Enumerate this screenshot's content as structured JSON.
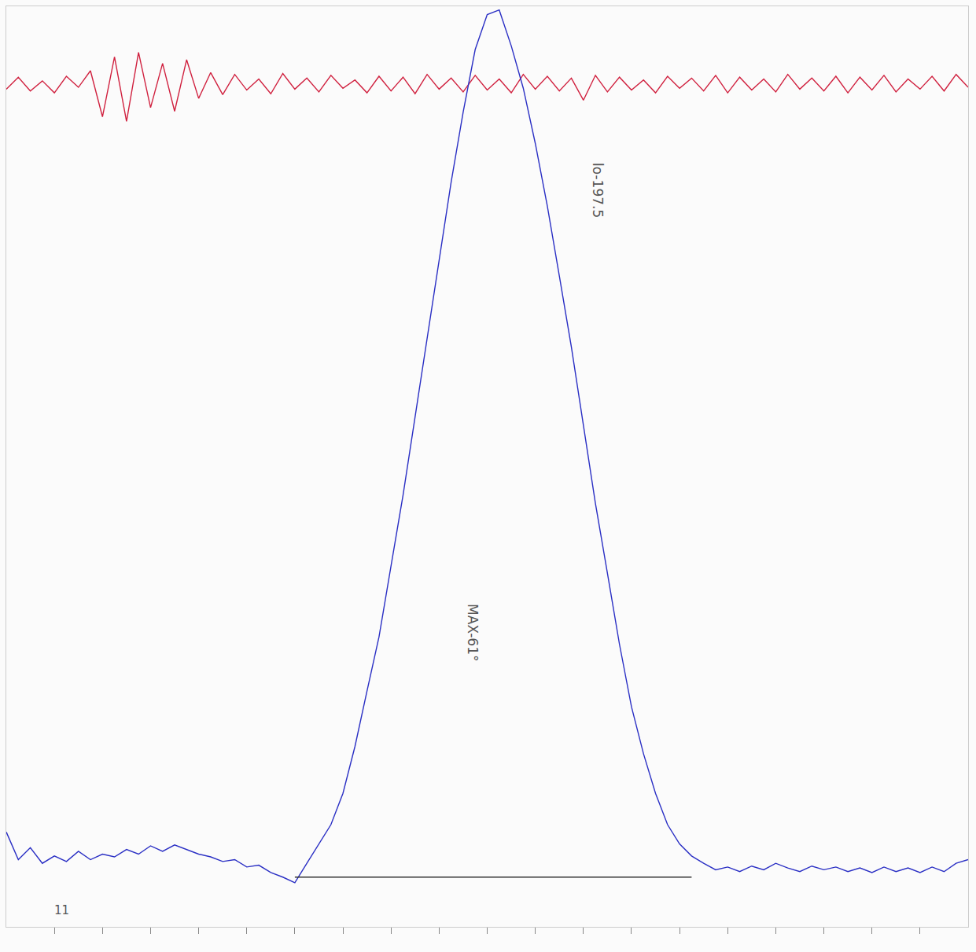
{
  "chart_data": {
    "type": "line",
    "x": [
      0,
      0.25,
      0.5,
      0.75,
      1,
      1.25,
      1.5,
      1.75,
      2,
      2.25,
      2.5,
      2.75,
      3,
      3.25,
      3.5,
      3.75,
      4,
      4.25,
      4.5,
      4.75,
      5,
      5.25,
      5.5,
      5.75,
      6,
      6.25,
      6.5,
      6.75,
      7,
      7.25,
      7.5,
      7.75,
      8,
      8.25,
      8.5,
      8.75,
      9,
      9.25,
      9.5,
      9.75,
      10,
      10.25,
      10.5,
      10.75,
      11,
      11.25,
      11.5,
      11.75,
      12,
      12.25,
      12.5,
      12.75,
      13,
      13.25,
      13.5,
      13.75,
      14,
      14.25,
      14.5,
      14.75,
      15,
      15.25,
      15.5,
      15.75,
      16,
      16.25,
      16.5,
      16.75,
      17,
      17.25,
      17.5,
      17.75,
      18,
      18.25,
      18.5,
      18.75,
      19,
      19.25,
      19.5,
      19.75,
      20
    ],
    "series": [
      {
        "color": "#d0213f",
        "values": [
          91.0,
          92.3,
          90.8,
          91.9,
          90.6,
          92.4,
          91.2,
          93.0,
          88.0,
          94.5,
          87.5,
          95.0,
          89.0,
          93.8,
          88.6,
          94.2,
          90.0,
          92.8,
          90.4,
          92.6,
          90.9,
          92.1,
          90.5,
          92.7,
          91.0,
          92.2,
          90.7,
          92.5,
          91.1,
          92.0,
          90.6,
          92.4,
          90.8,
          92.3,
          90.5,
          92.6,
          91.0,
          92.2,
          90.7,
          92.5,
          90.9,
          92.1,
          90.6,
          92.6,
          91.0,
          92.4,
          90.8,
          92.2,
          89.8,
          92.5,
          90.7,
          92.3,
          90.9,
          92.0,
          90.6,
          92.4,
          91.1,
          92.2,
          90.8,
          92.5,
          90.6,
          92.3,
          90.9,
          92.1,
          90.7,
          92.6,
          91.0,
          92.2,
          90.8,
          92.4,
          90.6,
          92.3,
          90.9,
          92.5,
          90.7,
          92.1,
          91.0,
          92.4,
          90.8,
          92.6,
          91.2
        ]
      },
      {
        "color": "#2a2fc4",
        "values": [
          10.3,
          7.3,
          8.6,
          6.9,
          7.7,
          7.1,
          8.2,
          7.3,
          7.9,
          7.6,
          8.4,
          7.9,
          8.8,
          8.2,
          8.9,
          8.4,
          7.9,
          7.6,
          7.1,
          7.3,
          6.5,
          6.7,
          5.9,
          5.4,
          4.8,
          6.9,
          9.0,
          11.1,
          14.5,
          19.6,
          25.6,
          31.5,
          39.2,
          46.9,
          55.4,
          63.9,
          72.4,
          80.9,
          88.5,
          95.3,
          99.1,
          99.6,
          95.7,
          91.1,
          85.1,
          78.3,
          70.7,
          63.0,
          54.5,
          46.0,
          38.4,
          30.7,
          23.9,
          18.8,
          14.5,
          11.1,
          9.0,
          7.7,
          6.9,
          6.2,
          6.5,
          6.0,
          6.6,
          6.2,
          6.9,
          6.4,
          6.0,
          6.6,
          6.2,
          6.5,
          6.0,
          6.4,
          5.9,
          6.5,
          6.0,
          6.4,
          5.9,
          6.5,
          6.0,
          6.9,
          7.3
        ]
      },
      {
        "color": "#333333",
        "x": [
          6.0,
          14.25
        ],
        "values": [
          5.4,
          5.4
        ]
      }
    ],
    "annotations": [
      {
        "text": "lo-197.5",
        "x": 12.3,
        "y": 80
      },
      {
        "text": "MAX-61°",
        "x": 9.7,
        "y": 32
      },
      {
        "text": "11",
        "x": 1.15,
        "y": 1.8
      }
    ],
    "xlim": [
      0,
      20
    ],
    "xticks": [
      1,
      2,
      3,
      4,
      5,
      6,
      7,
      8,
      9,
      10,
      11,
      12,
      13,
      14,
      15,
      16,
      17,
      18,
      19
    ],
    "ylim": [
      0,
      100
    ],
    "yticks": [],
    "grid": false,
    "tick_labels": false
  }
}
